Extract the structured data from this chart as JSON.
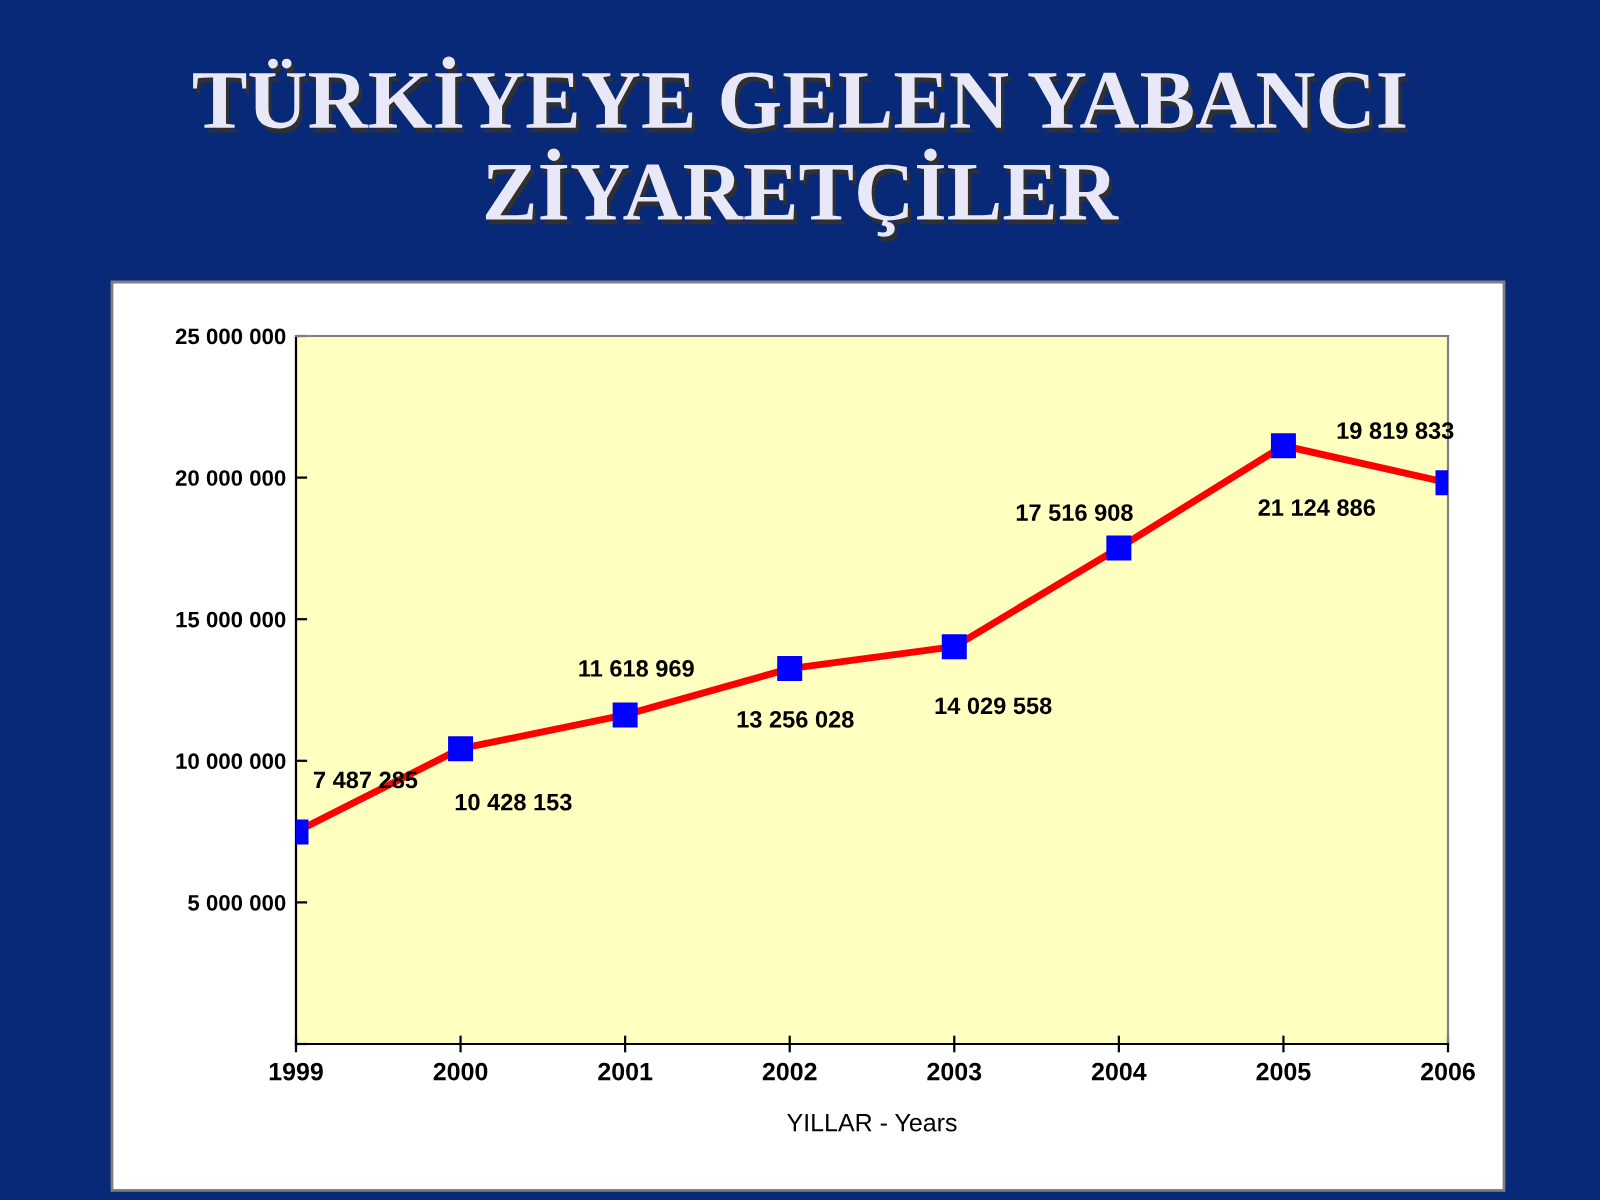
{
  "chart_data": {
    "type": "line",
    "title": "TÜRKİYEYE GELEN YABANCI\nZİYARETÇİLER",
    "xlabel": "YILLAR - Years",
    "categories": [
      "1999",
      "2000",
      "2001",
      "2002",
      "2003",
      "2004",
      "2005",
      "2006"
    ],
    "series": [
      {
        "color": "#ff0000",
        "values": [
          7487285,
          10428153,
          11618969,
          13256028,
          14029558,
          17516908,
          21124886,
          19819833
        ],
        "value_labels": [
          "7 487 285",
          "10 428 153",
          "11 618 969",
          "13 256 028",
          "14 029 558",
          "17 516 908",
          "21 124 886",
          "19 819 833"
        ]
      }
    ],
    "ylim": [
      0,
      25000000
    ],
    "yticks": [
      {
        "value": 0,
        "label": null
      },
      {
        "value": 5000000,
        "label": "5 000 000"
      },
      {
        "value": 10000000,
        "label": "10 000 000"
      },
      {
        "value": 15000000,
        "label": "15 000 000"
      },
      {
        "value": 20000000,
        "label": "20 000 000"
      },
      {
        "value": 25000000,
        "label": "25 000 000"
      }
    ],
    "grid": false,
    "legend": false,
    "marker": "square",
    "line_style": "solid"
  }
}
